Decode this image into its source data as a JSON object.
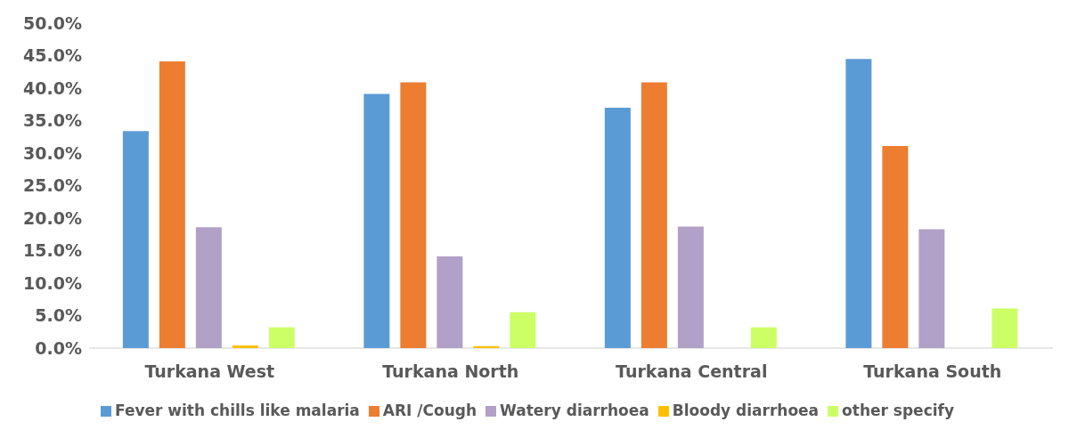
{
  "chart_data": {
    "type": "bar",
    "categories": [
      "Turkana West",
      "Turkana North",
      "Turkana Central",
      "Turkana South"
    ],
    "series": [
      {
        "name": "Fever with chills like malaria",
        "color": "#5b9bd5",
        "values": [
          33.4,
          39.1,
          37.0,
          44.5
        ]
      },
      {
        "name": "ARI /Cough",
        "color": "#ed7d31",
        "values": [
          44.1,
          40.9,
          40.9,
          31.1
        ]
      },
      {
        "name": "Watery diarrhoea",
        "color": "#b1a0c7",
        "values": [
          18.6,
          14.1,
          18.7,
          18.3
        ]
      },
      {
        "name": "Bloody diarrhoea",
        "color": "#ffc000",
        "values": [
          0.4,
          0.3,
          0,
          0
        ]
      },
      {
        "name": "other specify",
        "color": "#ccff66",
        "values": [
          3.2,
          5.5,
          3.2,
          6.1
        ]
      }
    ],
    "ylim": [
      0,
      50
    ],
    "yticks": [
      {
        "value": 0,
        "label": "0.0%"
      },
      {
        "value": 5,
        "label": "5.0%"
      },
      {
        "value": 10,
        "label": "10.0%"
      },
      {
        "value": 15,
        "label": "15.0%"
      },
      {
        "value": 20,
        "label": "20.0%"
      },
      {
        "value": 25,
        "label": "25.0%"
      },
      {
        "value": 30,
        "label": "30.0%"
      },
      {
        "value": 35,
        "label": "35.0%"
      },
      {
        "value": 40,
        "label": "40.0%"
      },
      {
        "value": 45,
        "label": "45.0%"
      },
      {
        "value": 50,
        "label": "50.0%"
      }
    ],
    "grid": false,
    "legend": "bottom"
  }
}
